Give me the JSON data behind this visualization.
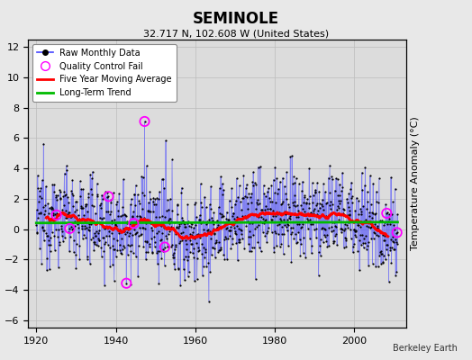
{
  "title": "SEMINOLE",
  "subtitle": "32.717 N, 102.608 W (United States)",
  "ylabel": "Temperature Anomaly (°C)",
  "xlim": [
    1918,
    2013
  ],
  "ylim": [
    -6.5,
    12.5
  ],
  "yticks": [
    -6,
    -4,
    -2,
    0,
    2,
    4,
    6,
    8,
    10,
    12
  ],
  "xticks": [
    1920,
    1940,
    1960,
    1980,
    2000
  ],
  "background_color": "#e8e8e8",
  "plot_bg_color": "#dcdcdc",
  "raw_line_color": "#4444ff",
  "raw_line_alpha": 0.6,
  "raw_marker_color": "#000000",
  "moving_avg_color": "#ff0000",
  "trend_color": "#00bb00",
  "qc_fail_color": "#ff00ff",
  "grid_color": "#bbbbbb",
  "credit": "Berkeley Earth",
  "seed": 12345,
  "start_year": 1920.0,
  "end_year": 2011.0
}
